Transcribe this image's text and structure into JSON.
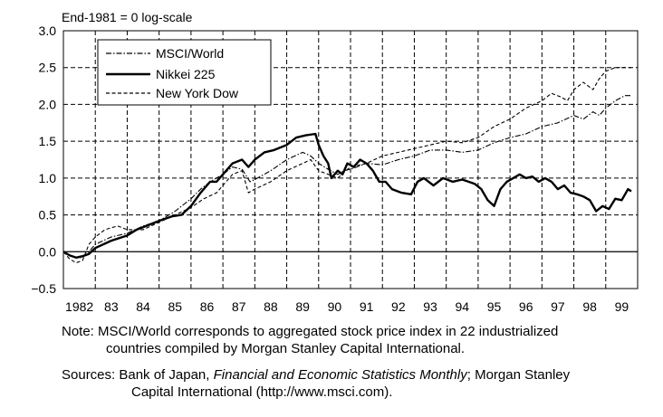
{
  "chart_data": {
    "type": "line",
    "title": "End-1981 = 0 log-scale",
    "xlabel": "",
    "ylabel": "",
    "ylim": [
      -0.5,
      3.0
    ],
    "xlim": [
      1982,
      2000
    ],
    "y_ticks": [
      3.0,
      2.5,
      2.0,
      1.5,
      1.0,
      0.5,
      0.0,
      -0.5
    ],
    "y_tick_labels": [
      "3.0",
      "2.5",
      "2.0",
      "1.5",
      "1.0",
      "0.5",
      "0.0",
      "−0.5"
    ],
    "x_tick_labels": [
      "1982",
      "83",
      "84",
      "85",
      "86",
      "87",
      "88",
      "89",
      "90",
      "91",
      "92",
      "93",
      "94",
      "95",
      "96",
      "97",
      "98",
      "99"
    ],
    "grid": true,
    "legend_position": "top-left",
    "series": [
      {
        "name": "MSCI/World",
        "style": "dash-dot",
        "x": [
          1982.0,
          1982.2,
          1982.4,
          1982.6,
          1982.8,
          1983.0,
          1983.5,
          1984.0,
          1984.5,
          1985.0,
          1985.5,
          1986.0,
          1986.3,
          1986.6,
          1987.0,
          1987.3,
          1987.6,
          1987.85,
          1988.0,
          1988.5,
          1989.0,
          1989.5,
          1989.75,
          1990.0,
          1990.3,
          1990.6,
          1990.8,
          1991.0,
          1991.5,
          1992.0,
          1992.5,
          1993.0,
          1993.5,
          1994.0,
          1994.5,
          1995.0,
          1995.5,
          1996.0,
          1996.5,
          1997.0,
          1997.5,
          1998.0,
          1998.3,
          1998.6,
          1998.8,
          1999.0,
          1999.3,
          1999.6,
          1999.8
        ],
        "values": [
          0.0,
          -0.05,
          -0.08,
          -0.08,
          0.0,
          0.1,
          0.2,
          0.25,
          0.35,
          0.42,
          0.55,
          0.72,
          0.85,
          0.95,
          1.05,
          1.15,
          1.12,
          0.95,
          0.98,
          1.1,
          1.25,
          1.35,
          1.3,
          1.2,
          1.12,
          1.05,
          1.1,
          1.12,
          1.2,
          1.18,
          1.25,
          1.3,
          1.38,
          1.38,
          1.35,
          1.38,
          1.48,
          1.55,
          1.6,
          1.7,
          1.75,
          1.85,
          1.8,
          1.9,
          1.85,
          1.95,
          2.05,
          2.12,
          2.12
        ]
      },
      {
        "name": "Nikkei 225",
        "style": "solid",
        "x": [
          1982.0,
          1982.2,
          1982.4,
          1982.6,
          1982.8,
          1983.0,
          1983.5,
          1984.0,
          1984.3,
          1984.6,
          1985.0,
          1985.4,
          1985.7,
          1986.0,
          1986.3,
          1986.6,
          1986.8,
          1987.0,
          1987.3,
          1987.6,
          1987.8,
          1988.0,
          1988.3,
          1988.6,
          1989.0,
          1989.3,
          1989.6,
          1989.9,
          1990.0,
          1990.15,
          1990.3,
          1990.4,
          1990.6,
          1990.75,
          1990.9,
          1991.1,
          1991.3,
          1991.5,
          1991.7,
          1991.9,
          1992.1,
          1992.3,
          1992.6,
          1992.9,
          1993.1,
          1993.3,
          1993.6,
          1993.9,
          1994.2,
          1994.5,
          1994.7,
          1994.9,
          1995.1,
          1995.3,
          1995.5,
          1995.7,
          1995.9,
          1996.1,
          1996.3,
          1996.5,
          1996.7,
          1996.9,
          1997.1,
          1997.3,
          1997.5,
          1997.7,
          1997.9,
          1998.1,
          1998.3,
          1998.5,
          1998.7,
          1998.9,
          1999.1,
          1999.3,
          1999.5,
          1999.7,
          1999.8
        ],
        "values": [
          0.0,
          -0.05,
          -0.08,
          -0.06,
          -0.03,
          0.05,
          0.15,
          0.22,
          0.3,
          0.35,
          0.42,
          0.48,
          0.5,
          0.62,
          0.8,
          0.95,
          0.95,
          1.05,
          1.2,
          1.25,
          1.15,
          1.25,
          1.35,
          1.38,
          1.45,
          1.55,
          1.58,
          1.6,
          1.45,
          1.3,
          1.2,
          1.0,
          1.1,
          1.05,
          1.2,
          1.15,
          1.25,
          1.2,
          1.1,
          0.95,
          0.95,
          0.85,
          0.8,
          0.78,
          0.95,
          1.0,
          0.9,
          1.0,
          0.95,
          0.98,
          0.95,
          0.92,
          0.85,
          0.7,
          0.62,
          0.85,
          0.95,
          1.0,
          1.05,
          1.0,
          1.02,
          0.95,
          1.0,
          0.95,
          0.85,
          0.9,
          0.8,
          0.78,
          0.75,
          0.7,
          0.55,
          0.62,
          0.58,
          0.72,
          0.7,
          0.85,
          0.82
        ]
      },
      {
        "name": "New York Dow",
        "style": "dashed",
        "x": [
          1982.0,
          1982.2,
          1982.4,
          1982.6,
          1982.8,
          1983.0,
          1983.3,
          1983.7,
          1984.0,
          1984.5,
          1985.0,
          1985.5,
          1986.0,
          1986.4,
          1986.8,
          1987.0,
          1987.3,
          1987.6,
          1987.8,
          1988.0,
          1988.5,
          1989.0,
          1989.5,
          1989.75,
          1990.0,
          1990.3,
          1990.6,
          1990.8,
          1991.0,
          1991.5,
          1992.0,
          1992.5,
          1993.0,
          1993.5,
          1994.0,
          1994.5,
          1995.0,
          1995.5,
          1996.0,
          1996.5,
          1997.0,
          1997.3,
          1997.6,
          1997.8,
          1998.0,
          1998.3,
          1998.6,
          1998.8,
          1999.0,
          1999.3,
          1999.6,
          1999.8
        ],
        "values": [
          0.0,
          -0.1,
          -0.15,
          -0.12,
          0.1,
          0.2,
          0.3,
          0.35,
          0.3,
          0.3,
          0.4,
          0.5,
          0.6,
          0.72,
          0.8,
          0.9,
          1.05,
          1.1,
          0.8,
          0.85,
          0.95,
          1.1,
          1.2,
          1.25,
          1.1,
          1.05,
          1.0,
          1.08,
          1.15,
          1.2,
          1.3,
          1.35,
          1.4,
          1.45,
          1.5,
          1.48,
          1.55,
          1.7,
          1.8,
          1.95,
          2.05,
          2.15,
          2.1,
          2.05,
          2.2,
          2.3,
          2.2,
          2.35,
          2.45,
          2.5,
          2.5,
          2.5
        ]
      }
    ]
  },
  "notes": {
    "note_line1": "Note: MSCI/World corresponds to aggregated stock price index in 22 industrialized",
    "note_line2": "countries compiled by Morgan Stanley Capital International.",
    "sources_prefix": "Sources: Bank of Japan, ",
    "sources_italic": "Financial and Economic Statistics Monthly",
    "sources_suffix": "; Morgan Stanley",
    "sources_line2": "Capital International (http://www.msci.com)."
  }
}
